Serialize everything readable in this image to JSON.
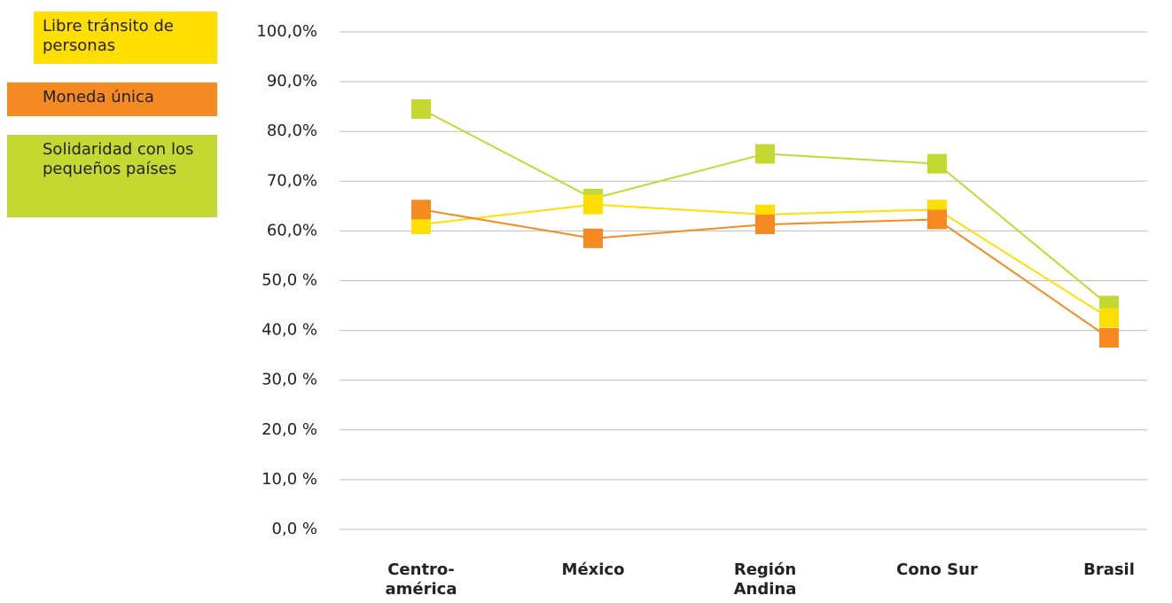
{
  "chart_data": {
    "type": "line",
    "categories": [
      "Centro-\namérica",
      "México",
      "Región\nAndina",
      "Cono Sur",
      "Brasil"
    ],
    "series": [
      {
        "name": "Solidaridad con los pequeños países",
        "color": "#c3d932",
        "values": [
          84.5,
          66.5,
          75.5,
          73.5,
          45
        ]
      },
      {
        "name": "Libre tránsito de personas",
        "color": "#ffde00",
        "values": [
          61.3,
          65.3,
          63.3,
          64.3,
          42.5
        ]
      },
      {
        "name": "Moneda única",
        "color": "#f58a22",
        "values": [
          64.3,
          58.5,
          61.3,
          62.3,
          38.5
        ]
      }
    ],
    "ylim": [
      0,
      100
    ],
    "yticks": [
      {
        "value": 0,
        "label": "0,0 %"
      },
      {
        "value": 10,
        "label": "10,0 %"
      },
      {
        "value": 20,
        "label": "20,0 %"
      },
      {
        "value": 30,
        "label": "30,0 %"
      },
      {
        "value": 40,
        "label": "40,0 %"
      },
      {
        "value": 50,
        "label": "50,0 %"
      },
      {
        "value": 60,
        "label": "60,0%"
      },
      {
        "value": 70,
        "label": "70,0%"
      },
      {
        "value": 80,
        "label": "80,0%"
      },
      {
        "value": 90,
        "label": "90,0%"
      },
      {
        "value": 100,
        "label": "100,0%"
      }
    ],
    "grid": true
  }
}
